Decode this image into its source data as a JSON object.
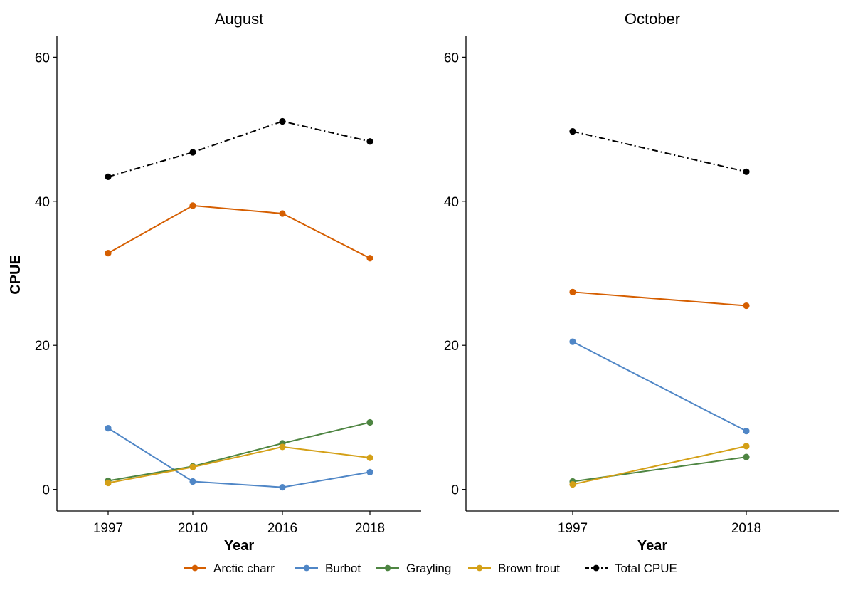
{
  "chart_data": {
    "type": "line",
    "ylabel": "CPUE",
    "xlabel": "Year",
    "ylim": [
      -3,
      63
    ],
    "yticks": [
      0,
      20,
      40,
      60
    ],
    "grid": false,
    "legend_position": "bottom",
    "panels": [
      {
        "title": "August",
        "categories": [
          "1997",
          "2010",
          "2016",
          "2018"
        ],
        "series": [
          {
            "name": "Arctic charr",
            "color": "#d55e00",
            "dash": "solid",
            "values": [
              32.8,
              39.4,
              38.3,
              32.1
            ]
          },
          {
            "name": "Burbot",
            "color": "#4f86c6",
            "dash": "solid",
            "values": [
              8.5,
              1.1,
              0.3,
              2.4
            ]
          },
          {
            "name": "Grayling",
            "color": "#4e8542",
            "dash": "solid",
            "values": [
              1.2,
              3.2,
              6.4,
              9.3
            ]
          },
          {
            "name": "Brown trout",
            "color": "#d4a017",
            "dash": "solid",
            "values": [
              0.9,
              3.1,
              5.9,
              4.4
            ]
          },
          {
            "name": "Total CPUE",
            "color": "#000000",
            "dash": "dashdot",
            "values": [
              43.4,
              46.8,
              51.1,
              48.3
            ]
          }
        ]
      },
      {
        "title": "October",
        "categories": [
          "1997",
          "2018"
        ],
        "series": [
          {
            "name": "Arctic charr",
            "color": "#d55e00",
            "dash": "solid",
            "values": [
              27.4,
              25.5
            ]
          },
          {
            "name": "Burbot",
            "color": "#4f86c6",
            "dash": "solid",
            "values": [
              20.5,
              8.1
            ]
          },
          {
            "name": "Grayling",
            "color": "#4e8542",
            "dash": "solid",
            "values": [
              1.1,
              4.5
            ]
          },
          {
            "name": "Brown trout",
            "color": "#d4a017",
            "dash": "solid",
            "values": [
              0.7,
              6.0
            ]
          },
          {
            "name": "Total CPUE",
            "color": "#000000",
            "dash": "dashdot",
            "values": [
              49.7,
              44.1
            ]
          }
        ]
      }
    ],
    "legend": [
      {
        "name": "Arctic charr",
        "color": "#d55e00",
        "dash": "solid"
      },
      {
        "name": "Burbot",
        "color": "#4f86c6",
        "dash": "solid"
      },
      {
        "name": "Grayling",
        "color": "#4e8542",
        "dash": "solid"
      },
      {
        "name": "Brown trout",
        "color": "#d4a017",
        "dash": "solid"
      },
      {
        "name": "Total CPUE",
        "color": "#000000",
        "dash": "dashdot"
      }
    ]
  }
}
